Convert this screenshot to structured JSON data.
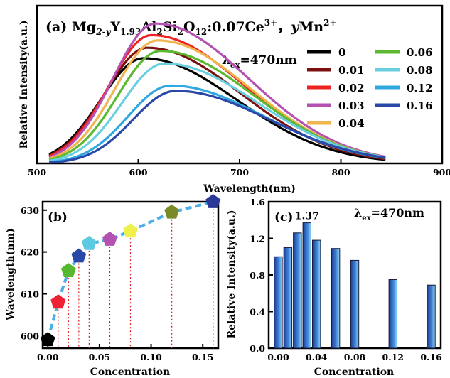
{
  "chart_data": [
    {
      "panel": "(a)",
      "type": "line",
      "title_parts": {
        "prefix": "(a) Mg",
        "sub1": "2-y",
        "mid1": "Y",
        "sub2": "1.93",
        "mid2": "Al",
        "sub3": "2",
        "mid3": "Si",
        "sub4": "2",
        "mid4": "O",
        "sub5": "12",
        "mid5": ":0.07Ce",
        "sup1": "3+",
        "mid6": "，",
        "ital": "y",
        "mid7": "Mn",
        "sup2": "2+"
      },
      "excitation": {
        "lambda": "λ",
        "sub": "ex",
        "rest": "=470nm"
      },
      "xlabel": "Wavelength(nm)",
      "ylabel": "Relative Intensity(a.u.)",
      "xlim": [
        500,
        900
      ],
      "xticks": [
        "500",
        "600",
        "700",
        "800",
        "900"
      ],
      "ylim": [
        0,
        1.5
      ],
      "series": [
        {
          "name": "0",
          "color": "#000000",
          "peak": 605,
          "amp": 1.0
        },
        {
          "name": "0.01",
          "color": "#7a1010",
          "peak": 609,
          "amp": 1.1
        },
        {
          "name": "0.02",
          "color": "#ee2222",
          "peak": 613,
          "amp": 1.22
        },
        {
          "name": "0.03",
          "color": "#b352b3",
          "peak": 617,
          "amp": 1.33
        },
        {
          "name": "0.04",
          "color": "#f2b44e",
          "peak": 619,
          "amp": 1.17
        },
        {
          "name": "0.06",
          "color": "#5cb82f",
          "peak": 622,
          "amp": 1.07
        },
        {
          "name": "0.08",
          "color": "#6ad0e0",
          "peak": 626,
          "amp": 0.95
        },
        {
          "name": "0.12",
          "color": "#2fa8e0",
          "peak": 632,
          "amp": 0.74
        },
        {
          "name": "0.16",
          "color": "#2a48a8",
          "peak": 637,
          "amp": 0.69
        }
      ]
    },
    {
      "panel": "(b)",
      "type": "scatter",
      "xlabel": "Concentration",
      "ylabel": "Wavelength(nm)",
      "xlim": [
        -0.005,
        0.165
      ],
      "ylim": [
        597,
        632
      ],
      "xticks": [
        "0.00",
        "0.05",
        "0.10",
        "0.15"
      ],
      "yticks": [
        "600",
        "610",
        "620",
        "630"
      ],
      "points": [
        {
          "x": 0.0,
          "y": 599,
          "color": "#000000"
        },
        {
          "x": 0.01,
          "y": 608,
          "color": "#ee2233"
        },
        {
          "x": 0.02,
          "y": 615.5,
          "color": "#55b82f"
        },
        {
          "x": 0.03,
          "y": 619,
          "color": "#2a48a8"
        },
        {
          "x": 0.04,
          "y": 622,
          "color": "#5ccbe2"
        },
        {
          "x": 0.06,
          "y": 623,
          "color": "#b352b3"
        },
        {
          "x": 0.08,
          "y": 625,
          "color": "#f0f04a"
        },
        {
          "x": 0.12,
          "y": 629.5,
          "color": "#7a8a28"
        },
        {
          "x": 0.16,
          "y": 632,
          "color": "#2a3898"
        }
      ],
      "line_color": "#4aaee8"
    },
    {
      "panel": "(c)",
      "type": "bar",
      "xlabel": "Concentration",
      "ylabel": "Relative Intensity(a.u.)",
      "excitation": {
        "lambda": "λ",
        "sub": "ex",
        "rest": "=470nm"
      },
      "annotation": "1.37",
      "xlim": [
        -0.01,
        0.17
      ],
      "ylim": [
        0,
        1.6
      ],
      "xticks": [
        "0.00",
        "0.04",
        "0.08",
        "0.12",
        "0.16"
      ],
      "yticks": [
        "0.0",
        "0.4",
        "0.8",
        "1.2",
        "1.6"
      ],
      "x": [
        0.0,
        0.01,
        0.02,
        0.03,
        0.04,
        0.06,
        0.08,
        0.12,
        0.16
      ],
      "values": [
        1.0,
        1.1,
        1.26,
        1.37,
        1.18,
        1.09,
        0.96,
        0.75,
        0.69
      ]
    }
  ]
}
